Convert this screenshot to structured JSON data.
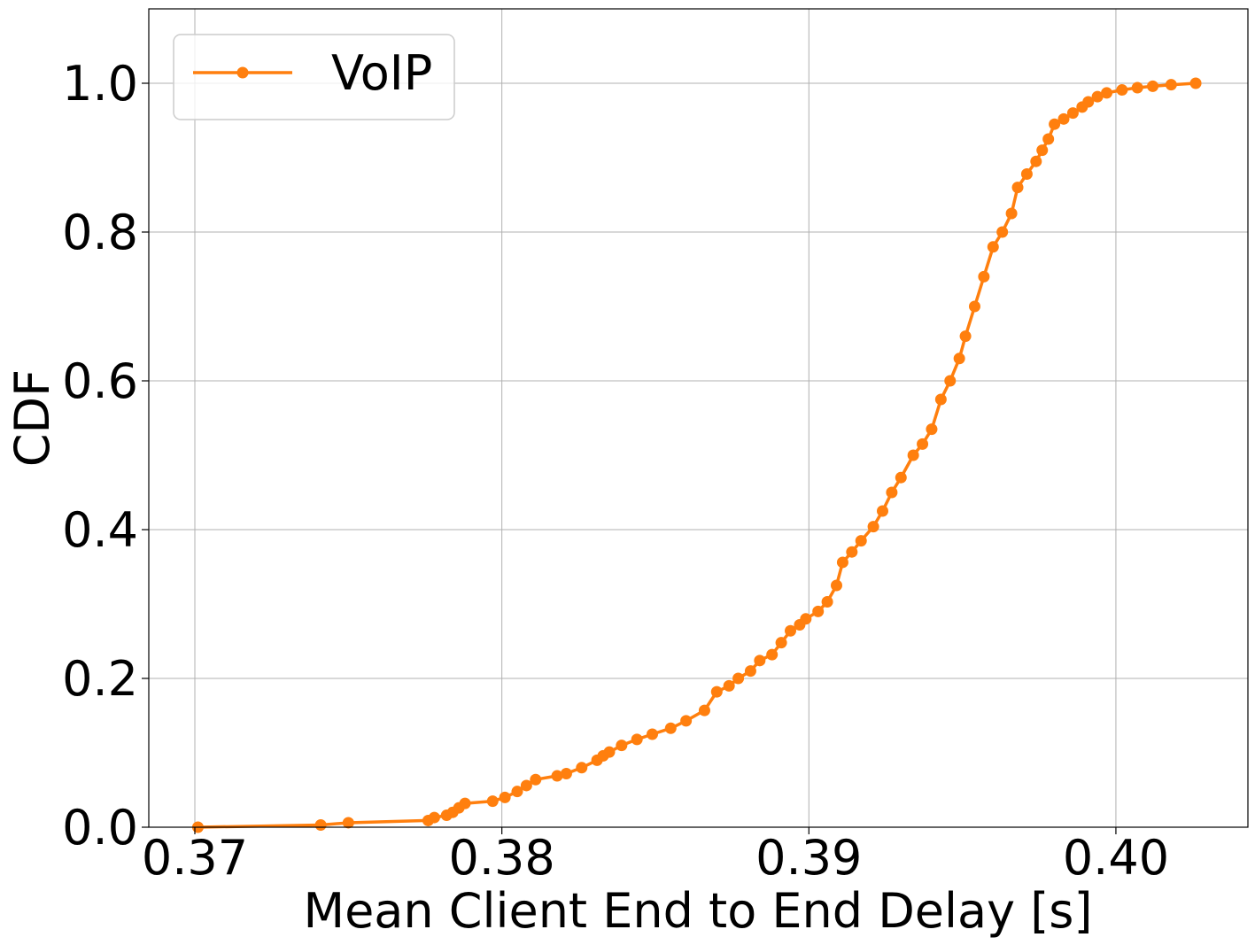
{
  "chart_data": {
    "type": "line",
    "xlabel": "Mean Client End to End Delay [s]",
    "ylabel": "CDF",
    "xlim": [
      0.3685,
      0.4043
    ],
    "ylim": [
      0.0,
      1.1
    ],
    "x_ticks": [
      0.37,
      0.38,
      0.39,
      0.4
    ],
    "x_tick_labels": [
      "0.37",
      "0.38",
      "0.39",
      "0.40"
    ],
    "y_ticks": [
      0.0,
      0.2,
      0.4,
      0.6,
      0.8,
      1.0
    ],
    "y_tick_labels": [
      "0.0",
      "0.2",
      "0.4",
      "0.6",
      "0.8",
      "1.0"
    ],
    "grid": true,
    "legend_position": "top-left",
    "series": [
      {
        "name": "VoIP",
        "color": "#ff7f0e",
        "marker": "circle",
        "x": [
          0.3701,
          0.3741,
          0.375,
          0.3776,
          0.3778,
          0.3782,
          0.3784,
          0.3786,
          0.3788,
          0.3797,
          0.3801,
          0.3805,
          0.3808,
          0.3811,
          0.3818,
          0.3821,
          0.3826,
          0.3831,
          0.3833,
          0.3835,
          0.3839,
          0.3844,
          0.3849,
          0.3855,
          0.386,
          0.3866,
          0.387,
          0.3874,
          0.3877,
          0.3881,
          0.3884,
          0.3888,
          0.3891,
          0.3894,
          0.3897,
          0.3899,
          0.3903,
          0.3906,
          0.3909,
          0.3911,
          0.3914,
          0.3917,
          0.3921,
          0.3924,
          0.3927,
          0.393,
          0.3934,
          0.3937,
          0.394,
          0.3943,
          0.3946,
          0.3949,
          0.3951,
          0.3954,
          0.3957,
          0.396,
          0.3963,
          0.3966,
          0.3968,
          0.3971,
          0.3974,
          0.3976,
          0.3978,
          0.398,
          0.3983,
          0.3986,
          0.3989,
          0.3991,
          0.3994,
          0.3997,
          0.4002,
          0.4007,
          0.4012,
          0.4018,
          0.4026
        ],
        "y": [
          0.0,
          0.003,
          0.006,
          0.009,
          0.013,
          0.016,
          0.02,
          0.026,
          0.032,
          0.035,
          0.04,
          0.048,
          0.056,
          0.064,
          0.069,
          0.072,
          0.08,
          0.09,
          0.096,
          0.101,
          0.11,
          0.118,
          0.125,
          0.133,
          0.143,
          0.157,
          0.182,
          0.19,
          0.2,
          0.21,
          0.224,
          0.232,
          0.248,
          0.264,
          0.272,
          0.28,
          0.29,
          0.303,
          0.325,
          0.356,
          0.37,
          0.385,
          0.404,
          0.425,
          0.45,
          0.47,
          0.5,
          0.515,
          0.535,
          0.575,
          0.6,
          0.63,
          0.66,
          0.7,
          0.74,
          0.78,
          0.8,
          0.825,
          0.86,
          0.878,
          0.895,
          0.91,
          0.925,
          0.945,
          0.952,
          0.96,
          0.968,
          0.975,
          0.982,
          0.987,
          0.991,
          0.994,
          0.996,
          0.998,
          1.0
        ]
      }
    ]
  }
}
